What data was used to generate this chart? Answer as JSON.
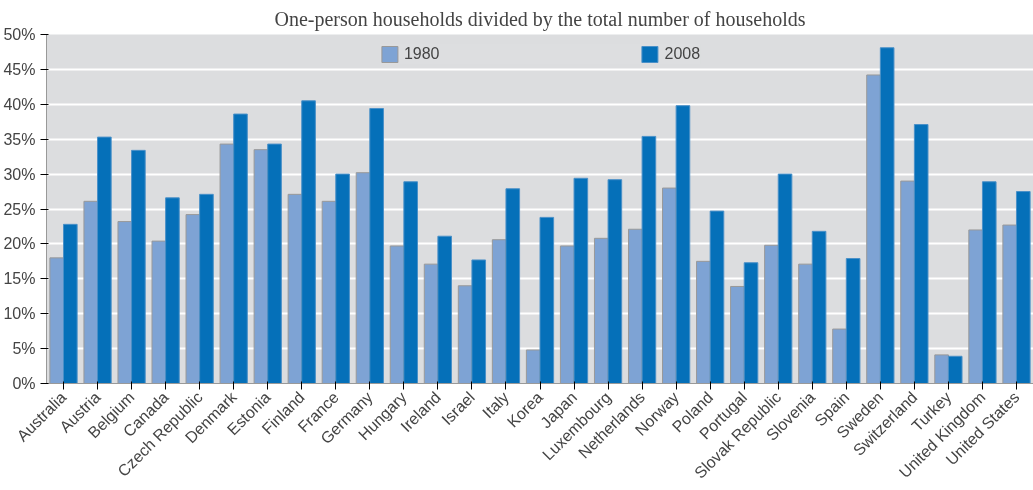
{
  "chart_data": {
    "type": "bar",
    "title": "One-person households divided by the total number of households",
    "categories": [
      "Australia",
      "Austria",
      "Belgium",
      "Canada",
      "Czech Republic",
      "Denmark",
      "Estonia",
      "Finland",
      "France",
      "Germany",
      "Hungary",
      "Ireland",
      "Israel",
      "Italy",
      "Korea",
      "Japan",
      "Luxembourg",
      "Netherlands",
      "Norway",
      "Poland",
      "Portugal",
      "Slovak Republic",
      "Slovenia",
      "Spain",
      "Sweden",
      "Switzerland",
      "Turkey",
      "United Kingdom",
      "United States"
    ],
    "series": [
      {
        "name": "1980",
        "color": "#7ea3d4",
        "values": [
          18.0,
          26.1,
          23.2,
          20.4,
          24.2,
          34.3,
          33.5,
          27.1,
          26.1,
          30.2,
          19.7,
          17.1,
          14.0,
          20.6,
          4.8,
          19.7,
          20.8,
          22.1,
          28.0,
          17.5,
          13.9,
          19.8,
          17.1,
          7.8,
          44.2,
          29.0,
          4.1,
          22.0,
          22.7
        ]
      },
      {
        "name": "2008",
        "color": "#0570b9",
        "values": [
          22.8,
          35.3,
          33.4,
          26.6,
          27.1,
          38.6,
          34.3,
          40.5,
          30.0,
          39.4,
          28.9,
          21.1,
          17.7,
          27.9,
          23.8,
          29.4,
          29.2,
          35.4,
          39.8,
          24.7,
          17.3,
          30.0,
          21.8,
          17.9,
          48.1,
          37.1,
          3.9,
          28.9,
          27.5
        ]
      }
    ],
    "ylim": [
      0,
      50
    ],
    "yticks": [
      {
        "value": 0,
        "label": "0%"
      },
      {
        "value": 5,
        "label": "5%"
      },
      {
        "value": 10,
        "label": "10%"
      },
      {
        "value": 15,
        "label": "15%"
      },
      {
        "value": 20,
        "label": "20%"
      },
      {
        "value": 25,
        "label": "25%"
      },
      {
        "value": 30,
        "label": "30%"
      },
      {
        "value": 35,
        "label": "35%"
      },
      {
        "value": 40,
        "label": "40%"
      },
      {
        "value": 45,
        "label": "45%"
      },
      {
        "value": 50,
        "label": "50%"
      }
    ],
    "grid": "y",
    "legend": "top"
  }
}
